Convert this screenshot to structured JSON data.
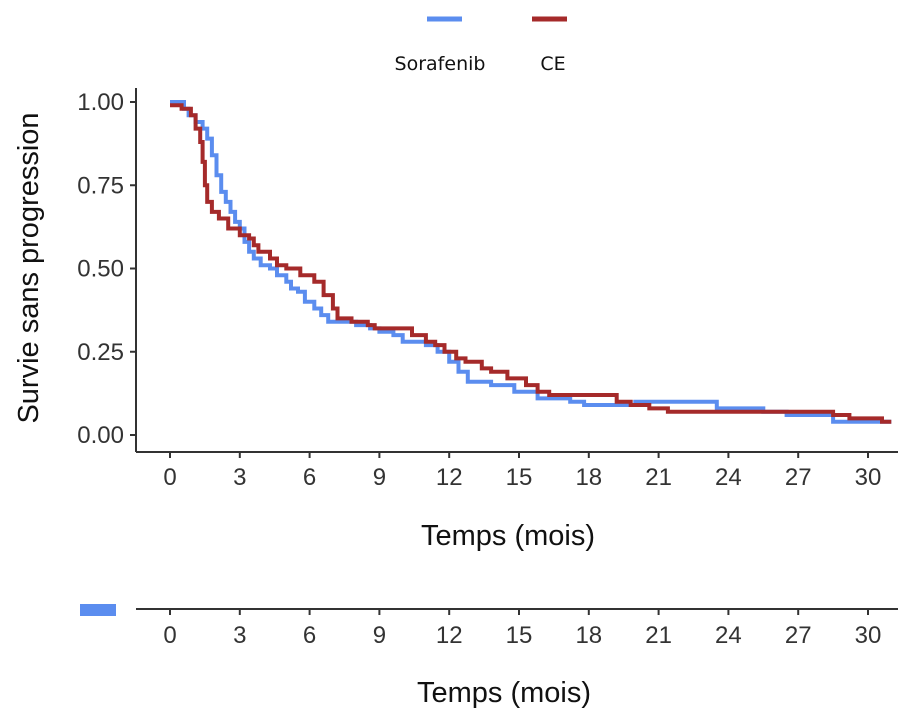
{
  "chart_data": {
    "type": "line",
    "step": true,
    "xlabel": "Temps (mois)",
    "ylabel": "Survie sans progression",
    "xlim": [
      -1,
      31
    ],
    "ylim": [
      0,
      1
    ],
    "x_ticks": [
      "0",
      "3",
      "6",
      "9",
      "12",
      "15",
      "18",
      "21",
      "24",
      "27",
      "30"
    ],
    "y_ticks": [
      "0.00",
      "0.25",
      "0.50",
      "0.75",
      "1.00"
    ],
    "legend_position": "top",
    "series": [
      {
        "name": "Sorafenib",
        "color": "#5b8def",
        "points": [
          [
            0,
            1.0
          ],
          [
            0.6,
            0.98
          ],
          [
            0.8,
            0.96
          ],
          [
            1.1,
            0.94
          ],
          [
            1.4,
            0.92
          ],
          [
            1.6,
            0.89
          ],
          [
            1.8,
            0.84
          ],
          [
            2.0,
            0.78
          ],
          [
            2.2,
            0.73
          ],
          [
            2.4,
            0.7
          ],
          [
            2.6,
            0.67
          ],
          [
            2.8,
            0.64
          ],
          [
            3.0,
            0.62
          ],
          [
            3.2,
            0.58
          ],
          [
            3.4,
            0.55
          ],
          [
            3.6,
            0.53
          ],
          [
            3.9,
            0.51
          ],
          [
            4.3,
            0.5
          ],
          [
            4.6,
            0.48
          ],
          [
            5.0,
            0.46
          ],
          [
            5.2,
            0.44
          ],
          [
            5.5,
            0.43
          ],
          [
            5.8,
            0.4
          ],
          [
            6.2,
            0.38
          ],
          [
            6.5,
            0.36
          ],
          [
            6.8,
            0.34
          ],
          [
            7.5,
            0.34
          ],
          [
            8.0,
            0.33
          ],
          [
            8.6,
            0.32
          ],
          [
            9.0,
            0.31
          ],
          [
            9.6,
            0.3
          ],
          [
            10.0,
            0.28
          ],
          [
            11.0,
            0.27
          ],
          [
            11.5,
            0.25
          ],
          [
            12.0,
            0.22
          ],
          [
            12.4,
            0.19
          ],
          [
            12.8,
            0.16
          ],
          [
            13.8,
            0.15
          ],
          [
            14.8,
            0.13
          ],
          [
            15.8,
            0.11
          ],
          [
            17.2,
            0.1
          ],
          [
            17.8,
            0.09
          ],
          [
            19.8,
            0.09
          ],
          [
            20.0,
            0.1
          ],
          [
            23.5,
            0.08
          ],
          [
            25.5,
            0.07
          ],
          [
            26.5,
            0.06
          ],
          [
            28.5,
            0.04
          ],
          [
            31.0,
            0.04
          ]
        ]
      },
      {
        "name": "CE",
        "color": "#a52a2a",
        "points": [
          [
            0,
            0.99
          ],
          [
            0.5,
            0.98
          ],
          [
            0.9,
            0.96
          ],
          [
            1.1,
            0.92
          ],
          [
            1.3,
            0.88
          ],
          [
            1.4,
            0.82
          ],
          [
            1.5,
            0.75
          ],
          [
            1.6,
            0.7
          ],
          [
            1.8,
            0.67
          ],
          [
            2.1,
            0.65
          ],
          [
            2.5,
            0.62
          ],
          [
            3.0,
            0.6
          ],
          [
            3.4,
            0.59
          ],
          [
            3.6,
            0.57
          ],
          [
            3.8,
            0.55
          ],
          [
            4.3,
            0.53
          ],
          [
            4.6,
            0.51
          ],
          [
            5.0,
            0.5
          ],
          [
            5.6,
            0.48
          ],
          [
            6.2,
            0.46
          ],
          [
            6.6,
            0.42
          ],
          [
            7.0,
            0.38
          ],
          [
            7.2,
            0.35
          ],
          [
            7.8,
            0.34
          ],
          [
            8.5,
            0.33
          ],
          [
            8.8,
            0.32
          ],
          [
            10.4,
            0.3
          ],
          [
            11.0,
            0.28
          ],
          [
            11.4,
            0.27
          ],
          [
            11.8,
            0.25
          ],
          [
            12.3,
            0.23
          ],
          [
            12.7,
            0.22
          ],
          [
            13.4,
            0.2
          ],
          [
            13.8,
            0.19
          ],
          [
            14.5,
            0.17
          ],
          [
            15.3,
            0.15
          ],
          [
            15.8,
            0.13
          ],
          [
            16.3,
            0.12
          ],
          [
            18.5,
            0.12
          ],
          [
            19.2,
            0.1
          ],
          [
            19.8,
            0.09
          ],
          [
            20.6,
            0.08
          ],
          [
            21.4,
            0.07
          ],
          [
            28.0,
            0.07
          ],
          [
            28.5,
            0.06
          ],
          [
            29.2,
            0.05
          ],
          [
            30.6,
            0.04
          ],
          [
            31.0,
            0.04
          ]
        ]
      }
    ],
    "secondary_axis": {
      "xlabel": "Temps (mois)",
      "x_ticks": [
        "0",
        "3",
        "6",
        "9",
        "12",
        "15",
        "18",
        "21",
        "24",
        "27",
        "30"
      ],
      "swatch_color": "#5b8def"
    }
  }
}
